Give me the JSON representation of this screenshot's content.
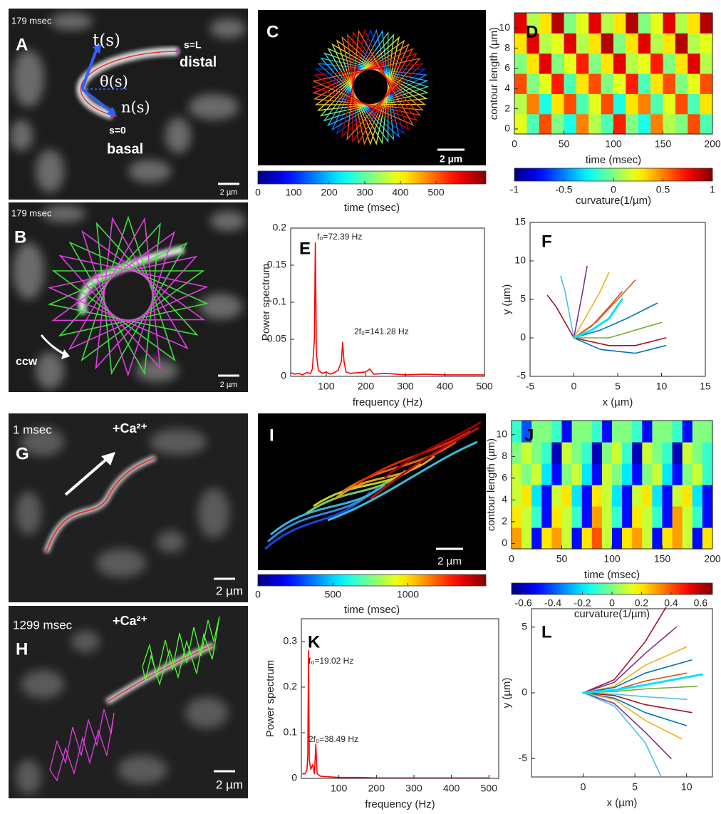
{
  "panels": {
    "A": {
      "label": "A",
      "time": "179 msec",
      "tangent": "t(s)",
      "angle": "θ(s)",
      "normal": "n(s)",
      "end": "s=L",
      "distal": "distal",
      "start": "s=0",
      "basal": "basal",
      "scale": "2 µm"
    },
    "B": {
      "label": "B",
      "time": "179 msec",
      "rotation": "ccw",
      "scale": "2 µm"
    },
    "C": {
      "label": "C",
      "scale": "2 µm"
    },
    "G": {
      "label": "G",
      "time": "1 msec",
      "condition": "+Ca²⁺",
      "scale": "2 µm"
    },
    "H": {
      "label": "H",
      "time": "1299 msec",
      "condition": "+Ca²⁺",
      "scale": "2 µm"
    },
    "I": {
      "label": "I",
      "scale": "2 µm"
    }
  },
  "chart_data": [
    {
      "type": "colorbar",
      "xlabel": "time (msec)",
      "xlim": [
        0,
        640
      ],
      "xticks": [
        0,
        100,
        200,
        300,
        400,
        500
      ],
      "colormap": "jet"
    },
    {
      "type": "heatmap",
      "label": "D",
      "xlabel": "time (msec)",
      "ylabel": "contour length (µm)",
      "xlim": [
        0,
        200
      ],
      "ylim": [
        -0.5,
        11.5
      ],
      "xticks": [
        0,
        50,
        100,
        150,
        200
      ],
      "yticks": [
        0,
        2,
        4,
        6,
        8,
        10
      ],
      "colormap": "jet",
      "clim": [
        -1,
        1
      ],
      "values": [
        [
          0.2,
          -0.1,
          0.6,
          0,
          -0.2,
          0.5,
          0.1,
          -0.1,
          0.7,
          0,
          -0.2,
          0.5,
          0.1,
          0,
          0.6,
          -0.1
        ],
        [
          0.1,
          0.5,
          -0.2,
          0.3,
          0.6,
          -0.1,
          0.2,
          0.6,
          -0.2,
          0.3,
          0.5,
          -0.1,
          0.2,
          0.6,
          -0.1,
          0.3
        ],
        [
          0.6,
          0,
          0.2,
          0.7,
          -0.1,
          0.3,
          0.6,
          0,
          0.2,
          0.7,
          -0.1,
          0.3,
          0.6,
          0,
          0.2,
          0.6
        ],
        [
          0,
          0.3,
          0.8,
          0,
          0.2,
          0.7,
          0,
          0.3,
          0.8,
          0.1,
          0.2,
          0.7,
          0,
          0.3,
          0.8,
          0.1
        ],
        [
          0.3,
          0.8,
          0.1,
          0.2,
          0.8,
          0.1,
          0.3,
          0.9,
          0,
          0.3,
          0.8,
          0.1,
          0.3,
          0.9,
          0.1,
          0.2
        ],
        [
          0.8,
          0.1,
          0.3,
          0.9,
          0,
          0.2,
          0.8,
          0.1,
          0.3,
          0.9,
          0,
          0.2,
          0.8,
          0.1,
          0.3,
          0.9
        ]
      ],
      "colorbar": {
        "xlabel": "curvature(1/µm)",
        "xticks": [
          -1,
          -0.5,
          0,
          0.5,
          1
        ]
      }
    },
    {
      "type": "line",
      "label": "E",
      "xlabel": "frequency (Hz)",
      "ylabel": "Power spectrum",
      "xlim": [
        10,
        500
      ],
      "ylim": [
        0,
        0.2
      ],
      "xticks": [
        100,
        200,
        300,
        400,
        500
      ],
      "yticks": [
        0,
        0.05,
        0.1,
        0.15,
        0.2
      ],
      "color": "#ff0000",
      "x": [
        10,
        20,
        30,
        40,
        50,
        60,
        65,
        70,
        72.39,
        75,
        80,
        90,
        100,
        110,
        120,
        130,
        138,
        141.28,
        145,
        150,
        160,
        180,
        200,
        210,
        220,
        250,
        300,
        350,
        400,
        450,
        500
      ],
      "values": [
        0.005,
        0.003,
        0.004,
        0.002,
        0.005,
        0.004,
        0.01,
        0.05,
        0.18,
        0.03,
        0.008,
        0.004,
        0.006,
        0.003,
        0.005,
        0.008,
        0.02,
        0.046,
        0.02,
        0.006,
        0.004,
        0.005,
        0.006,
        0.01,
        0.003,
        0.004,
        0.002,
        0.003,
        0.002,
        0.002,
        0.002
      ],
      "annotations": [
        {
          "text": "f₀=72.39 Hz"
        },
        {
          "text": "2f₀=141.28 Hz"
        }
      ]
    },
    {
      "type": "line",
      "label": "F",
      "xlabel": "x (µm)",
      "ylabel": "y (µm)",
      "xlim": [
        -5,
        15
      ],
      "ylim": [
        -5,
        15
      ],
      "xticks": [
        -5,
        0,
        5,
        10,
        15
      ],
      "yticks": [
        -5,
        0,
        5,
        10,
        15
      ],
      "series": [
        {
          "color": "#a2142f",
          "x": [
            0,
            -1,
            -2,
            -3
          ],
          "values": [
            0,
            2,
            4,
            5.5
          ]
        },
        {
          "color": "#4dbeee",
          "x": [
            0,
            -0.5,
            -1,
            -1.5
          ],
          "values": [
            0,
            3,
            6,
            8
          ]
        },
        {
          "color": "#7e2f8e",
          "x": [
            0,
            0.5,
            1,
            1.5
          ],
          "values": [
            0,
            3,
            6,
            9.3
          ]
        },
        {
          "color": "#edb120",
          "x": [
            0,
            1.5,
            3,
            4
          ],
          "values": [
            0,
            3,
            6,
            8.5
          ]
        },
        {
          "color": "#d95319",
          "x": [
            0,
            2.5,
            5,
            7
          ],
          "values": [
            0,
            2,
            5,
            7.5
          ]
        },
        {
          "color": "#0072bd",
          "x": [
            0,
            3,
            6,
            9.5
          ],
          "values": [
            0,
            1,
            2.5,
            4.5
          ]
        },
        {
          "color": "#77ac30",
          "x": [
            0,
            4,
            7,
            10
          ],
          "values": [
            0,
            0,
            1,
            2
          ]
        },
        {
          "color": "#a2142f",
          "x": [
            0,
            4,
            7,
            10.5
          ],
          "values": [
            0,
            -1,
            -1,
            0
          ]
        },
        {
          "color": "#0072bd",
          "x": [
            0,
            3,
            7,
            10.5
          ],
          "values": [
            0,
            -1.5,
            -2,
            -1
          ]
        },
        {
          "color": "#d95319",
          "x": [
            0,
            2,
            4,
            5.5
          ],
          "values": [
            0,
            1.5,
            4,
            6
          ]
        },
        {
          "color": "#00e5ff",
          "linewidth": 3,
          "x": [
            0,
            2,
            4,
            5.5
          ],
          "values": [
            0,
            1,
            2.5,
            5
          ]
        }
      ]
    },
    {
      "type": "colorbar",
      "xlabel": "time (msec)",
      "xlim": [
        0,
        1520
      ],
      "xticks": [
        0,
        500,
        1000
      ],
      "colormap": "jet"
    },
    {
      "type": "heatmap",
      "label": "J",
      "xlabel": "time (msec)",
      "ylabel": "contour length (µm)",
      "xlim": [
        0,
        200
      ],
      "ylim": [
        -0.5,
        11.3
      ],
      "xticks": [
        0,
        50,
        100,
        150,
        200
      ],
      "yticks": [
        0,
        2,
        4,
        6,
        8,
        10
      ],
      "colormap": "jet",
      "clim": [
        -0.68,
        0.68
      ],
      "values": [
        [
          0.3,
          0.1,
          -0.5,
          0.2,
          0.3,
          0.1,
          -0.5,
          0.2,
          0.4,
          0.1,
          -0.5,
          0.2,
          0.3,
          0.1,
          -0.5,
          0.2,
          0.3,
          0.1,
          -0.5,
          0.2
        ],
        [
          0.2,
          0.1,
          -0.1,
          -0.5,
          0.2,
          0.1,
          -0.1,
          -0.5,
          0.3,
          0.1,
          -0.1,
          -0.5,
          0.2,
          0.1,
          -0.1,
          -0.5,
          0.3,
          0.1,
          -0.1,
          -0.5
        ],
        [
          0.1,
          0.2,
          -0.2,
          -0.5,
          0.1,
          0.2,
          -0.2,
          -0.5,
          0.2,
          0.1,
          -0.2,
          -0.5,
          0.1,
          0.2,
          -0.2,
          -0.5,
          0.1,
          0.2,
          -0.2,
          -0.5
        ],
        [
          0.1,
          0,
          0.1,
          -0.2,
          -0.5,
          0,
          0.1,
          -0.2,
          -0.5,
          0.1,
          0,
          -0.2,
          -0.5,
          0,
          0.1,
          -0.2,
          -0.5,
          0,
          0.1,
          -0.1
        ],
        [
          0,
          0.1,
          0,
          -0.1,
          -0.6,
          0.1,
          0,
          -0.1,
          -0.6,
          0,
          0.1,
          -0.1,
          -0.6,
          0.1,
          0,
          -0.1,
          -0.6,
          0.1,
          0,
          -0.1
        ],
        [
          -0.1,
          -0.4,
          0,
          0,
          -0.1,
          -0.5,
          0,
          0,
          -0.1,
          -0.5,
          0,
          0,
          -0.1,
          -0.5,
          0,
          0,
          -0.1,
          -0.5,
          0,
          0
        ]
      ],
      "colorbar": {
        "xlabel": "curvature(1/µm)",
        "xticks": [
          -0.6,
          -0.4,
          -0.2,
          0,
          0.2,
          0.4,
          0.6
        ]
      }
    },
    {
      "type": "line",
      "label": "K",
      "xlabel": "frequency (Hz)",
      "ylabel": "Power spectrum",
      "xlim": [
        0,
        526
      ],
      "ylim": [
        0,
        0.35
      ],
      "xticks": [
        100,
        200,
        300,
        400,
        500
      ],
      "yticks": [
        0,
        0.1,
        0.2,
        0.3
      ],
      "color": "#ff0000",
      "x": [
        2,
        10,
        15,
        17,
        19.02,
        21,
        25,
        30,
        35,
        38.49,
        42,
        50,
        60,
        80,
        100,
        150,
        200,
        300,
        400,
        500
      ],
      "values": [
        0.01,
        0.01,
        0.02,
        0.05,
        0.28,
        0.04,
        0.02,
        0.03,
        0.01,
        0.075,
        0.01,
        0.005,
        0.004,
        0.003,
        0.002,
        0.002,
        0.001,
        0.001,
        0.001,
        0.001
      ],
      "annotations": [
        {
          "text": "f₀=19.02 Hz"
        },
        {
          "text": "2f₀=38.49 Hz"
        }
      ]
    },
    {
      "type": "line",
      "label": "L",
      "xlabel": "x (µm)",
      "ylabel": "y (µm)",
      "xlim": [
        -5,
        12.5
      ],
      "ylim": [
        -6.4,
        6.4
      ],
      "xticks": [
        0,
        5,
        10
      ],
      "yticks": [
        -5,
        0,
        5
      ],
      "series": [
        {
          "color": "#a2142f",
          "x": [
            0,
            3,
            6,
            8
          ],
          "values": [
            0,
            1,
            3.9,
            6.5
          ]
        },
        {
          "color": "#7e2f8e",
          "x": [
            0,
            3,
            6,
            9
          ],
          "values": [
            0,
            0.8,
            3,
            5
          ]
        },
        {
          "color": "#edb120",
          "x": [
            0,
            3,
            6,
            10
          ],
          "values": [
            0,
            0.5,
            2.1,
            3.5
          ]
        },
        {
          "color": "#0072bd",
          "x": [
            0,
            3,
            6,
            10.5
          ],
          "values": [
            0,
            0.4,
            1.5,
            2.5
          ]
        },
        {
          "color": "#d95319",
          "x": [
            0,
            3,
            6,
            10
          ],
          "values": [
            0,
            0.2,
            0.9,
            1.5
          ]
        },
        {
          "color": "#77ac30",
          "x": [
            0,
            3,
            6,
            11
          ],
          "values": [
            0,
            0.1,
            0.3,
            0.5
          ]
        },
        {
          "color": "#4dbeee",
          "x": [
            0,
            3,
            6,
            10
          ],
          "values": [
            0,
            -0.1,
            -0.3,
            -0.5
          ]
        },
        {
          "color": "#a2142f",
          "x": [
            0,
            3,
            6,
            10.5
          ],
          "values": [
            0,
            -0.2,
            -0.9,
            -1.5
          ]
        },
        {
          "color": "#0072bd",
          "x": [
            0,
            3,
            6,
            10
          ],
          "values": [
            0,
            -0.4,
            -1.5,
            -2.5
          ]
        },
        {
          "color": "#edb120",
          "x": [
            0,
            3,
            6,
            9.5
          ],
          "values": [
            0,
            -0.5,
            -2.1,
            -3.5
          ]
        },
        {
          "color": "#7e2f8e",
          "x": [
            0,
            3,
            6,
            8.5
          ],
          "values": [
            0,
            -0.8,
            -3,
            -5
          ]
        },
        {
          "color": "#4dbeee",
          "x": [
            0,
            3,
            6,
            7.5
          ],
          "values": [
            0,
            -1,
            -3.8,
            -6.3
          ]
        },
        {
          "color": "#00e5ff",
          "linewidth": 3,
          "x": [
            0,
            3,
            6,
            11.5
          ],
          "values": [
            0,
            0.2,
            0.6,
            1.4
          ]
        }
      ]
    }
  ]
}
